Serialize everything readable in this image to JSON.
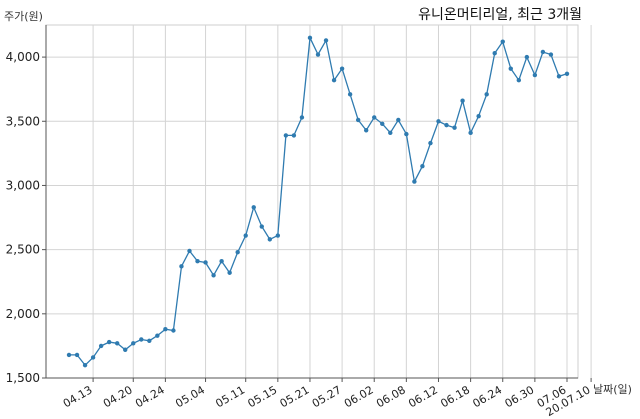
{
  "chart_data": {
    "type": "line",
    "title": "유니온머티리얼, 최근 3개월",
    "ylabel": "주가(원)",
    "xlabel": "날짜(일)",
    "ylim": [
      1500,
      4250
    ],
    "yticks": [
      1500,
      2000,
      2500,
      3000,
      3500,
      4000
    ],
    "ytick_labels": [
      "1,500",
      "2,000",
      "2,500",
      "3,000",
      "3,500",
      "4,000"
    ],
    "grid": true,
    "line_color": "#2f7bb0",
    "xtick_labels": [
      "04.13",
      "04.20",
      "04.24",
      "05.04",
      "05.11",
      "05.15",
      "05.21",
      "05.27",
      "06.02",
      "06.08",
      "06.12",
      "06.18",
      "06.24",
      "06.30",
      "07.06",
      "20.07.10"
    ],
    "xtick_index": [
      3,
      8,
      12,
      17,
      22,
      26,
      30,
      34,
      38,
      42,
      46,
      50,
      54,
      58,
      62,
      65
    ],
    "series": [
      {
        "values": [
          1680,
          1680,
          1600,
          1660,
          1750,
          1780,
          1770,
          1720,
          1770,
          1800,
          1790,
          1830,
          1880,
          1870,
          2370,
          2490,
          2410,
          2400,
          2300,
          2410,
          2320,
          2480,
          2610,
          2830,
          2680,
          2580,
          2610,
          3390,
          3390,
          3530,
          4150,
          4020,
          4130,
          3820,
          3910,
          3710,
          3510,
          3430,
          3530,
          3480,
          3410,
          3510,
          3400,
          3030,
          3150,
          3330,
          3500,
          3470,
          3450,
          3660,
          3410,
          3540,
          3710,
          4030,
          4120,
          3910,
          3820,
          4000,
          3860,
          4040,
          4020,
          3850,
          3870
        ]
      }
    ]
  }
}
